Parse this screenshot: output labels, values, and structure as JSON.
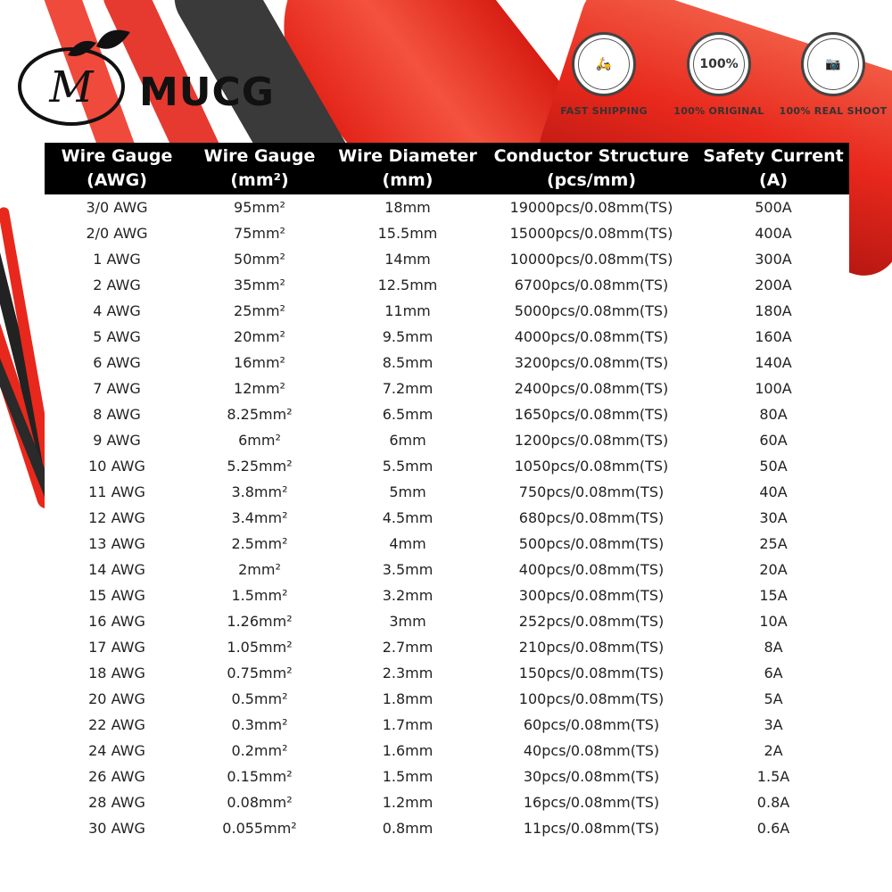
{
  "brand": {
    "name": "MUCG",
    "logo_letter": "M"
  },
  "badges": [
    {
      "icon": "scooter-delivery-icon",
      "label": "FAST SHIPPING",
      "circle_text": "🛵"
    },
    {
      "icon": "original-seal-icon",
      "label": "100% ORIGINAL",
      "circle_text": "100%"
    },
    {
      "icon": "camera-icon",
      "label": "100% REAL SHOOT",
      "circle_text": "📷"
    }
  ],
  "colors": {
    "wire_red": "#e8281c",
    "wire_black": "#2a2a2a",
    "header_bg": "#000000"
  },
  "table": {
    "headers": [
      [
        "Wire Gauge",
        "(AWG)"
      ],
      [
        "Wire Gauge",
        "(mm²)"
      ],
      [
        "Wire Diameter",
        "(mm)"
      ],
      [
        "Conductor Structure",
        "(pcs/mm)"
      ],
      [
        "Safety Current",
        "(A)"
      ]
    ],
    "rows": [
      [
        "3/0 AWG",
        "95mm²",
        "18mm",
        "19000pcs/0.08mm(TS)",
        "500A"
      ],
      [
        "2/0 AWG",
        "75mm²",
        "15.5mm",
        "15000pcs/0.08mm(TS)",
        "400A"
      ],
      [
        "1 AWG",
        "50mm²",
        "14mm",
        "10000pcs/0.08mm(TS)",
        "300A"
      ],
      [
        "2 AWG",
        "35mm²",
        "12.5mm",
        "6700pcs/0.08mm(TS)",
        "200A"
      ],
      [
        "4 AWG",
        "25mm²",
        "11mm",
        "5000pcs/0.08mm(TS)",
        "180A"
      ],
      [
        "5 AWG",
        "20mm²",
        "9.5mm",
        "4000pcs/0.08mm(TS)",
        "160A"
      ],
      [
        "6 AWG",
        "16mm²",
        "8.5mm",
        "3200pcs/0.08mm(TS)",
        "140A"
      ],
      [
        "7 AWG",
        "12mm²",
        "7.2mm",
        "2400pcs/0.08mm(TS)",
        "100A"
      ],
      [
        "8 AWG",
        "8.25mm²",
        "6.5mm",
        "1650pcs/0.08mm(TS)",
        "80A"
      ],
      [
        "9 AWG",
        "6mm²",
        "6mm",
        "1200pcs/0.08mm(TS)",
        "60A"
      ],
      [
        "10 AWG",
        "5.25mm²",
        "5.5mm",
        "1050pcs/0.08mm(TS)",
        "50A"
      ],
      [
        "11 AWG",
        "3.8mm²",
        "5mm",
        "750pcs/0.08mm(TS)",
        "40A"
      ],
      [
        "12 AWG",
        "3.4mm²",
        "4.5mm",
        "680pcs/0.08mm(TS)",
        "30A"
      ],
      [
        "13 AWG",
        "2.5mm²",
        "4mm",
        "500pcs/0.08mm(TS)",
        "25A"
      ],
      [
        "14 AWG",
        "2mm²",
        "3.5mm",
        "400pcs/0.08mm(TS)",
        "20A"
      ],
      [
        "15 AWG",
        "1.5mm²",
        "3.2mm",
        "300pcs/0.08mm(TS)",
        "15A"
      ],
      [
        "16 AWG",
        "1.26mm²",
        "3mm",
        "252pcs/0.08mm(TS)",
        "10A"
      ],
      [
        "17 AWG",
        "1.05mm²",
        "2.7mm",
        "210pcs/0.08mm(TS)",
        "8A"
      ],
      [
        "18 AWG",
        "0.75mm²",
        "2.3mm",
        "150pcs/0.08mm(TS)",
        "6A"
      ],
      [
        "20 AWG",
        "0.5mm²",
        "1.8mm",
        "100pcs/0.08mm(TS)",
        "5A"
      ],
      [
        "22 AWG",
        "0.3mm²",
        "1.7mm",
        "60pcs/0.08mm(TS)",
        "3A"
      ],
      [
        "24 AWG",
        "0.2mm²",
        "1.6mm",
        "40pcs/0.08mm(TS)",
        "2A"
      ],
      [
        "26 AWG",
        "0.15mm²",
        "1.5mm",
        "30pcs/0.08mm(TS)",
        "1.5A"
      ],
      [
        "28 AWG",
        "0.08mm²",
        "1.2mm",
        "16pcs/0.08mm(TS)",
        "0.8A"
      ],
      [
        "30 AWG",
        "0.055mm²",
        "0.8mm",
        "11pcs/0.08mm(TS)",
        "0.6A"
      ]
    ]
  }
}
